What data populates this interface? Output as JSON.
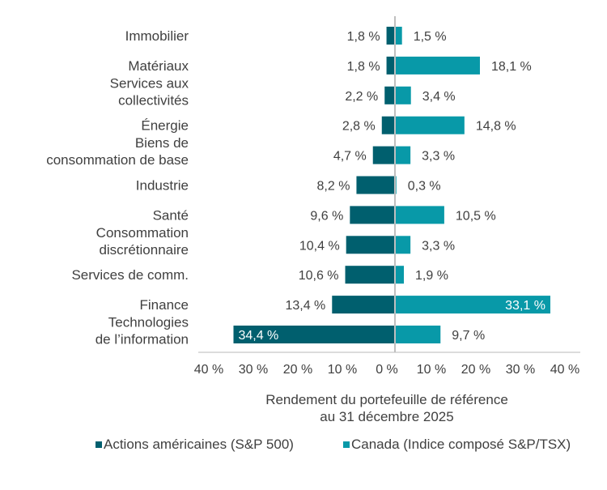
{
  "chart_data": {
    "type": "bar",
    "orientation": "horizontal-diverging",
    "categories": [
      "Immobilier",
      "Matériaux",
      "Services aux\ncollectivités",
      "Énergie",
      "Biens de\nconsommation de base",
      "Industrie",
      "Santé",
      "Consommation\ndiscrétionnaire",
      "Services de comm.",
      "Finance",
      "Technologies\nde l’information"
    ],
    "series": [
      {
        "name": "Actions américaines (S&P 500)",
        "color": "#005F6E",
        "side": "left",
        "values": [
          1.8,
          1.8,
          2.2,
          2.8,
          4.7,
          8.2,
          9.6,
          10.4,
          10.6,
          13.4,
          34.4
        ],
        "labels": [
          "1,8 %",
          "1,8 %",
          "2,2 %",
          "2,8 %",
          "4,7 %",
          "8,2 %",
          "9,6 %",
          "10,4 %",
          "10,6 %",
          "13,4 %",
          "34,4 %"
        ]
      },
      {
        "name": "Canada (Indice composé S&P/TSX)",
        "color": "#0899A8",
        "side": "right",
        "values": [
          1.5,
          18.1,
          3.4,
          14.8,
          3.3,
          0.3,
          10.5,
          3.3,
          1.9,
          33.1,
          9.7
        ],
        "labels": [
          "1,5 %",
          "18,1 %",
          "3,4 %",
          "14,8 %",
          "3,3 %",
          "0,3 %",
          "10,5 %",
          "3,3 %",
          "1,9 %",
          "33,1 %",
          "9,7 %"
        ]
      }
    ],
    "xlabel": "Rendement du portefeuille de référence\nau 31 décembre 2025",
    "xticks": [
      "40 %",
      "30 %",
      "20 %",
      "10 %",
      "0 %",
      "10 %",
      "20 %",
      "30 %",
      "40 %"
    ],
    "xlim": [
      -40,
      40
    ],
    "grid": false,
    "legend_position": "bottom"
  }
}
